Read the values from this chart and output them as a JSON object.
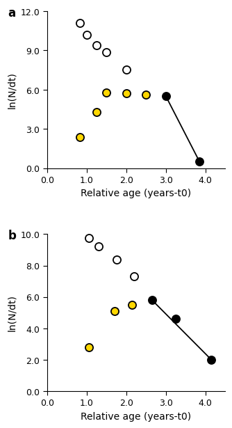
{
  "panel_a": {
    "label": "a",
    "white_circles": {
      "x": [
        0.82,
        1.0,
        1.25,
        1.5,
        2.0
      ],
      "y": [
        11.1,
        10.2,
        9.4,
        8.85,
        7.55
      ]
    },
    "yellow_circles": {
      "x": [
        0.82,
        1.25,
        1.5,
        2.0,
        2.5
      ],
      "y": [
        2.4,
        4.3,
        5.8,
        5.7,
        5.6
      ]
    },
    "black_circles": {
      "x": [
        3.0,
        3.85
      ],
      "y": [
        5.5,
        0.5
      ]
    },
    "line_x": [
      3.0,
      3.85
    ],
    "line_y": [
      5.5,
      0.5
    ],
    "xlim": [
      0.0,
      4.5
    ],
    "ylim": [
      0.0,
      12.0
    ],
    "yticks": [
      0.0,
      3.0,
      6.0,
      9.0,
      12.0
    ],
    "xticks": [
      0.0,
      1.0,
      2.0,
      3.0,
      4.0
    ],
    "ylabel": "ln(N/dt)",
    "xlabel": "Relative age (years-t0)"
  },
  "panel_b": {
    "label": "b",
    "white_circles": {
      "x": [
        1.05,
        1.3,
        1.75,
        2.2
      ],
      "y": [
        9.75,
        9.2,
        8.4,
        7.3
      ]
    },
    "yellow_circles": {
      "x": [
        1.05,
        1.7,
        2.15
      ],
      "y": [
        2.8,
        5.1,
        5.5
      ]
    },
    "black_circles": {
      "x": [
        2.65,
        3.25,
        4.15
      ],
      "y": [
        5.8,
        4.6,
        2.0
      ]
    },
    "line_x": [
      2.65,
      4.15
    ],
    "line_y": [
      5.8,
      2.0
    ],
    "xlim": [
      0.0,
      4.5
    ],
    "ylim": [
      0.0,
      10.0
    ],
    "yticks": [
      0.0,
      2.0,
      4.0,
      6.0,
      8.0,
      10.0
    ],
    "xticks": [
      0.0,
      1.0,
      2.0,
      3.0,
      4.0
    ],
    "ylabel": "ln(N/dt)",
    "xlabel": "Relative age (years-t0)"
  },
  "white_color": "#ffffff",
  "yellow_color": "#FFD700",
  "black_color": "#000000",
  "marker_size": 8,
  "marker_edge_width": 1.3,
  "line_color": "#000000",
  "line_width": 1.3,
  "font_size": 10,
  "label_font_size": 12,
  "tick_font_size": 9
}
